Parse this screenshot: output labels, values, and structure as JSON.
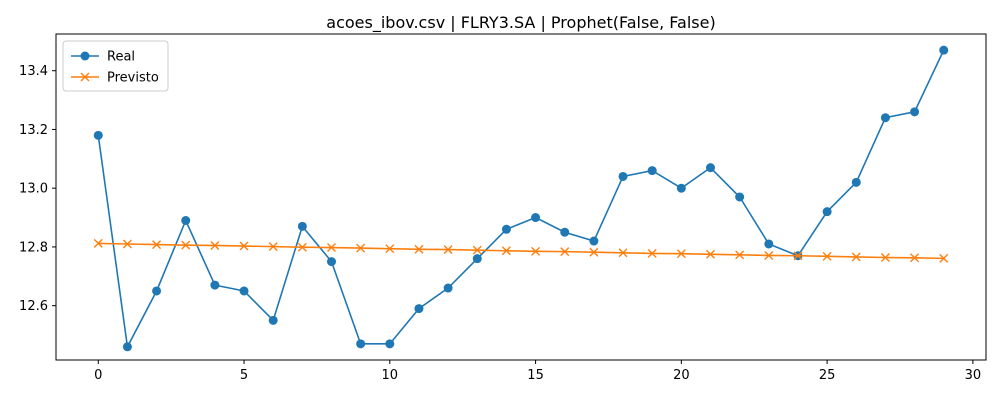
{
  "chart_data": {
    "type": "line",
    "title": "acoes_ibov.csv | FLRY3.SA | Prophet(False, False)",
    "xlabel": "",
    "ylabel": "",
    "xlim": [
      -1.45,
      30.45
    ],
    "ylim": [
      12.415,
      13.525
    ],
    "xticks": [
      0,
      5,
      10,
      15,
      20,
      25,
      30
    ],
    "yticks": [
      12.6,
      12.8,
      13.0,
      13.2,
      13.4
    ],
    "ytick_labels": [
      "12.6",
      "12.8",
      "13.0",
      "13.2",
      "13.4"
    ],
    "grid": false,
    "legend_position": "upper-left",
    "x": [
      0,
      1,
      2,
      3,
      4,
      5,
      6,
      7,
      8,
      9,
      10,
      11,
      12,
      13,
      14,
      15,
      16,
      17,
      18,
      19,
      20,
      21,
      22,
      23,
      24,
      25,
      26,
      27,
      28,
      29
    ],
    "series": [
      {
        "name": "Real",
        "color": "#1f77b4",
        "marker": "circle",
        "values": [
          13.18,
          12.46,
          12.65,
          12.89,
          12.67,
          12.65,
          12.55,
          12.87,
          12.75,
          12.47,
          12.47,
          12.59,
          12.66,
          12.76,
          12.86,
          12.9,
          12.85,
          12.82,
          13.04,
          13.06,
          13.0,
          13.07,
          12.97,
          12.81,
          12.77,
          12.92,
          13.02,
          13.24,
          13.26,
          13.47
        ]
      },
      {
        "name": "Previsto",
        "color": "#ff7f0e",
        "marker": "x",
        "values": [
          12.812,
          12.81,
          12.808,
          12.806,
          12.805,
          12.803,
          12.801,
          12.799,
          12.798,
          12.796,
          12.794,
          12.792,
          12.791,
          12.789,
          12.787,
          12.785,
          12.784,
          12.782,
          12.78,
          12.778,
          12.777,
          12.775,
          12.773,
          12.771,
          12.77,
          12.768,
          12.766,
          12.764,
          12.763,
          12.761
        ]
      }
    ]
  }
}
